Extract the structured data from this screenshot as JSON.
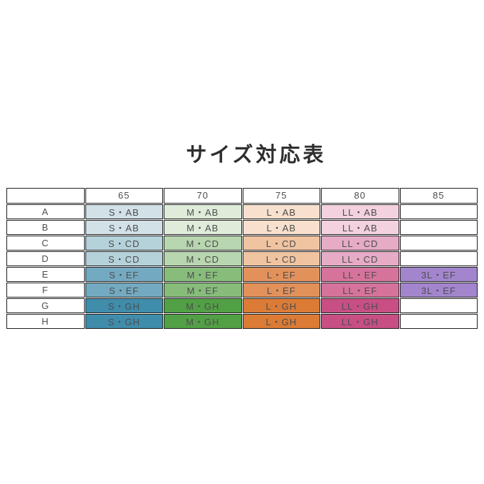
{
  "title": "サイズ対応表",
  "colors": {
    "background": "#ffffff",
    "border": "#1f1f1f",
    "title_text": "#2f2f2f",
    "cell_text": "#4d4d4d",
    "blue_ab": "#d2e1e7",
    "blue_cd": "#b5d2db",
    "blue_ef": "#74aac1",
    "blue_gh": "#3f8dab",
    "green_ab": "#dfecda",
    "green_cd": "#b8d6af",
    "green_ef": "#87bc7b",
    "green_gh": "#52a046",
    "orange_ab": "#f7e0cd",
    "orange_cd": "#f0c3a1",
    "orange_ef": "#e2915b",
    "orange_gh": "#db7b36",
    "pink_ab": "#f3d1df",
    "pink_cd": "#e6abc7",
    "pink_ef": "#d6739d",
    "pink_gh": "#c84f84",
    "purple_ef": "#a385ce",
    "empty": "#ffffff"
  },
  "table": {
    "corner": "",
    "col_headers": [
      "65",
      "70",
      "75",
      "80",
      "85"
    ],
    "rows": [
      {
        "label": "A",
        "cells": [
          {
            "text": "S・AB",
            "bg": "#d2e1e7"
          },
          {
            "text": "M・AB",
            "bg": "#dfecda"
          },
          {
            "text": "L・AB",
            "bg": "#f7e0cd"
          },
          {
            "text": "LL・AB",
            "bg": "#f3d1df"
          },
          {
            "text": "",
            "bg": "#ffffff"
          }
        ]
      },
      {
        "label": "B",
        "cells": [
          {
            "text": "S・AB",
            "bg": "#d2e1e7"
          },
          {
            "text": "M・AB",
            "bg": "#dfecda"
          },
          {
            "text": "L・AB",
            "bg": "#f7e0cd"
          },
          {
            "text": "LL・AB",
            "bg": "#f3d1df"
          },
          {
            "text": "",
            "bg": "#ffffff"
          }
        ]
      },
      {
        "label": "C",
        "cells": [
          {
            "text": "S・CD",
            "bg": "#b5d2db"
          },
          {
            "text": "M・CD",
            "bg": "#b8d6af"
          },
          {
            "text": "L・CD",
            "bg": "#f0c3a1"
          },
          {
            "text": "LL・CD",
            "bg": "#e6abc7"
          },
          {
            "text": "",
            "bg": "#ffffff"
          }
        ]
      },
      {
        "label": "D",
        "cells": [
          {
            "text": "S・CD",
            "bg": "#b5d2db"
          },
          {
            "text": "M・CD",
            "bg": "#b8d6af"
          },
          {
            "text": "L・CD",
            "bg": "#f0c3a1"
          },
          {
            "text": "LL・CD",
            "bg": "#e6abc7"
          },
          {
            "text": "",
            "bg": "#ffffff"
          }
        ]
      },
      {
        "label": "E",
        "cells": [
          {
            "text": "S・EF",
            "bg": "#74aac1"
          },
          {
            "text": "M・EF",
            "bg": "#87bc7b"
          },
          {
            "text": "L・EF",
            "bg": "#e2915b"
          },
          {
            "text": "LL・EF",
            "bg": "#d6739d"
          },
          {
            "text": "3L・EF",
            "bg": "#a385ce"
          }
        ]
      },
      {
        "label": "F",
        "cells": [
          {
            "text": "S・EF",
            "bg": "#74aac1"
          },
          {
            "text": "M・EF",
            "bg": "#87bc7b"
          },
          {
            "text": "L・EF",
            "bg": "#e2915b"
          },
          {
            "text": "LL・EF",
            "bg": "#d6739d"
          },
          {
            "text": "3L・EF",
            "bg": "#a385ce"
          }
        ]
      },
      {
        "label": "G",
        "cells": [
          {
            "text": "S・GH",
            "bg": "#3f8dab"
          },
          {
            "text": "M・GH",
            "bg": "#52a046"
          },
          {
            "text": "L・GH",
            "bg": "#db7b36"
          },
          {
            "text": "LL・GH",
            "bg": "#c84f84"
          },
          {
            "text": "",
            "bg": "#ffffff"
          }
        ]
      },
      {
        "label": "H",
        "cells": [
          {
            "text": "S・GH",
            "bg": "#3f8dab"
          },
          {
            "text": "M・GH",
            "bg": "#52a046"
          },
          {
            "text": "L・GH",
            "bg": "#db7b36"
          },
          {
            "text": "LL・GH",
            "bg": "#c84f84"
          },
          {
            "text": "",
            "bg": "#ffffff"
          }
        ]
      }
    ]
  },
  "chart_data": {
    "type": "table",
    "title": "サイズ対応表",
    "columns": [
      "",
      "65",
      "70",
      "75",
      "80",
      "85"
    ],
    "rows": [
      [
        "A",
        "S・AB",
        "M・AB",
        "L・AB",
        "LL・AB",
        ""
      ],
      [
        "B",
        "S・AB",
        "M・AB",
        "L・AB",
        "LL・AB",
        ""
      ],
      [
        "C",
        "S・CD",
        "M・CD",
        "L・CD",
        "LL・CD",
        ""
      ],
      [
        "D",
        "S・CD",
        "M・CD",
        "L・CD",
        "LL・CD",
        ""
      ],
      [
        "E",
        "S・EF",
        "M・EF",
        "L・EF",
        "LL・EF",
        "3L・EF"
      ],
      [
        "F",
        "S・EF",
        "M・EF",
        "L・EF",
        "LL・EF",
        "3L・EF"
      ],
      [
        "G",
        "S・GH",
        "M・GH",
        "L・GH",
        "LL・GH",
        ""
      ],
      [
        "H",
        "S・GH",
        "M・GH",
        "L・GH",
        "LL・GH",
        ""
      ]
    ],
    "layout_hints": {
      "column_hue_scheme": [
        "none",
        "blue",
        "green",
        "orange",
        "pink",
        "purple"
      ],
      "row_shade_scheme": "color darkens from AB rows (lightest) to GH rows (darkest)",
      "grid": true,
      "legend": "none"
    }
  }
}
